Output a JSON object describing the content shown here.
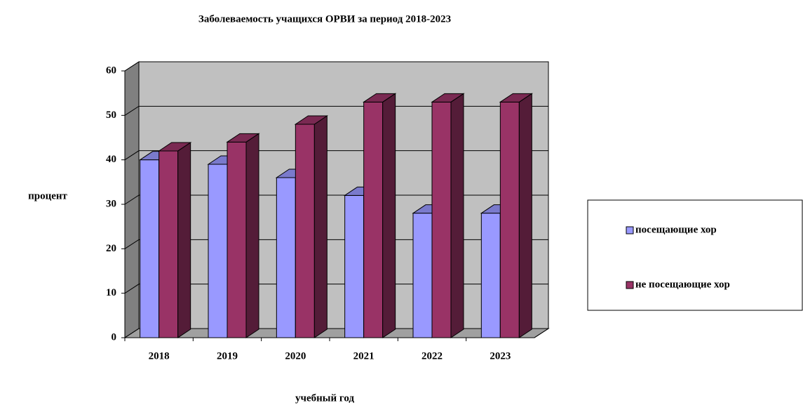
{
  "chart_data": {
    "type": "bar3d",
    "title": "Заболеваемость учащихся ОРВИ за период 2018-2023",
    "x_label": "учебный год",
    "y_label": "процент",
    "categories": [
      "2018",
      "2019",
      "2020",
      "2021",
      "2022",
      "2023"
    ],
    "series": [
      {
        "name": "посещающие хор",
        "color": "#9999ff",
        "values": [
          40,
          39,
          36,
          32,
          28,
          28
        ]
      },
      {
        "name": "не посещающие хор",
        "color": "#993366",
        "values": [
          42,
          44,
          48,
          53,
          53,
          53
        ]
      }
    ],
    "ylim": [
      0,
      60
    ],
    "yticks": [
      0,
      10,
      20,
      30,
      40,
      50,
      60
    ],
    "grid": true,
    "legend": "right"
  }
}
